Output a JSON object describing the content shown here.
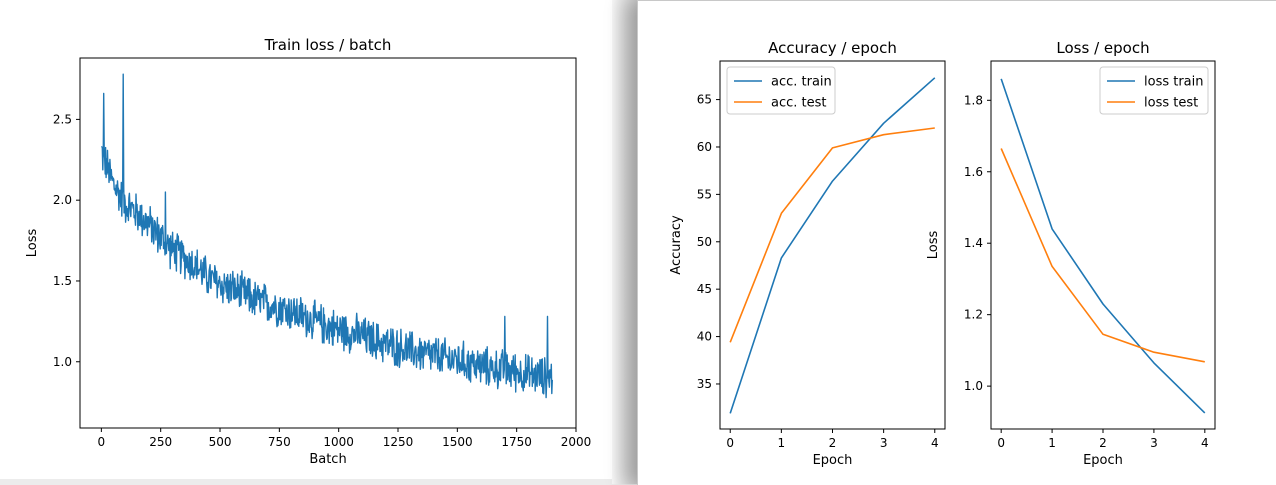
{
  "chart_data": [
    {
      "id": "batch",
      "type": "line",
      "title": "Train loss / batch",
      "xlabel": "Batch",
      "ylabel": "Loss",
      "xlim": [
        -90,
        2000
      ],
      "ylim": [
        0.59,
        2.88
      ],
      "xticks": [
        0,
        250,
        500,
        750,
        1000,
        1250,
        1500,
        1750,
        2000
      ],
      "yticks": [
        1.0,
        1.5,
        2.0,
        2.5
      ],
      "ytick_labels": [
        "1.0",
        "1.5",
        "2.0",
        "2.5"
      ],
      "legend": false,
      "series": [
        {
          "color": "#1f77b4",
          "x": [
            0,
            50,
            100,
            150,
            200,
            250,
            300,
            350,
            400,
            450,
            500,
            550,
            600,
            650,
            700,
            750,
            800,
            850,
            900,
            950,
            1000,
            1050,
            1100,
            1150,
            1200,
            1250,
            1300,
            1350,
            1400,
            1450,
            1500,
            1550,
            1600,
            1650,
            1700,
            1750,
            1800,
            1850,
            1900
          ],
          "values": [
            2.3,
            2.1,
            1.98,
            1.92,
            1.85,
            1.77,
            1.69,
            1.64,
            1.59,
            1.52,
            1.48,
            1.45,
            1.42,
            1.38,
            1.36,
            1.34,
            1.31,
            1.28,
            1.25,
            1.22,
            1.2,
            1.18,
            1.16,
            1.13,
            1.11,
            1.09,
            1.07,
            1.05,
            1.04,
            1.02,
            1.01,
            0.99,
            0.97,
            0.96,
            0.95,
            0.94,
            0.92,
            0.91,
            0.9
          ],
          "spikes": [
            [
              10,
              2.66
            ],
            [
              92,
              2.78
            ],
            [
              270,
              2.05
            ],
            [
              1700,
              1.28
            ],
            [
              1880,
              1.28
            ]
          ],
          "noise": 0.11
        }
      ]
    },
    {
      "id": "acc",
      "type": "line",
      "title": "Accuracy / epoch",
      "xlabel": "Epoch",
      "ylabel": "Accuracy",
      "x": [
        0,
        1,
        2,
        3,
        4
      ],
      "xlim": [
        -0.2,
        4.2
      ],
      "ylim": [
        30.25,
        69.07
      ],
      "xticks": [
        0,
        1,
        2,
        3,
        4
      ],
      "yticks": [
        35,
        40,
        45,
        50,
        55,
        60,
        65
      ],
      "legend_position": "upper left",
      "series": [
        {
          "name": "acc. train",
          "color": "#1f77b4",
          "values": [
            31.9,
            48.3,
            56.4,
            62.5,
            67.3
          ]
        },
        {
          "name": "acc. test",
          "color": "#ff7f0e",
          "values": [
            39.4,
            53.0,
            59.9,
            61.3,
            62.0
          ]
        }
      ]
    },
    {
      "id": "loss",
      "type": "line",
      "title": "Loss / epoch",
      "xlabel": "Epoch",
      "ylabel": "Loss",
      "x": [
        0,
        1,
        2,
        3,
        4
      ],
      "xlim": [
        -0.2,
        4.2
      ],
      "ylim": [
        0.88,
        1.91
      ],
      "xticks": [
        0,
        1,
        2,
        3,
        4
      ],
      "yticks": [
        1.0,
        1.2,
        1.4,
        1.6,
        1.8
      ],
      "ytick_labels": [
        "1.0",
        "1.2",
        "1.4",
        "1.6",
        "1.8"
      ],
      "legend_position": "upper right",
      "series": [
        {
          "name": "loss train",
          "color": "#1f77b4",
          "values": [
            1.86,
            1.44,
            1.23,
            1.065,
            0.925
          ]
        },
        {
          "name": "loss test",
          "color": "#ff7f0e",
          "values": [
            1.665,
            1.335,
            1.145,
            1.095,
            1.068
          ]
        }
      ]
    }
  ]
}
